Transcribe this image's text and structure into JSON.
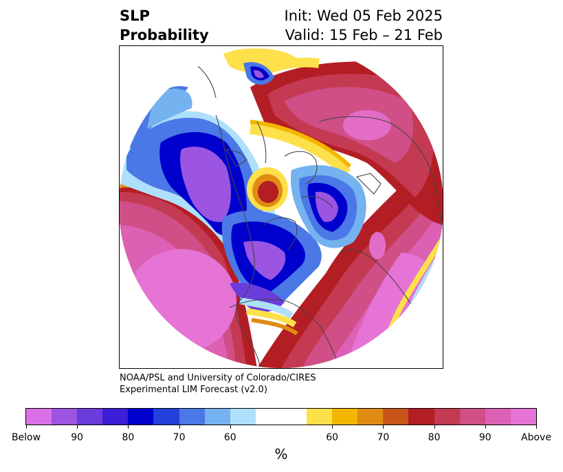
{
  "header": {
    "title_line1": "SLP",
    "title_line2": "Probability",
    "init": "Init: Wed 05 Feb 2025",
    "valid": "Valid: 15 Feb – 21 Feb"
  },
  "credit": {
    "line1": "NOAA/PSL and University of Colorado/CIRES",
    "line2": "Experimental LIM Forecast (v2.0)"
  },
  "colorbar": {
    "colors": [
      "#da70e6",
      "#9b55e0",
      "#6a3cdb",
      "#3b1ed6",
      "#0000cd",
      "#2340da",
      "#4a78e6",
      "#74b2f0",
      "#aee0fb",
      "#ffffff",
      "#ffffff",
      "#fde04a",
      "#f3b600",
      "#e08c12",
      "#c8561b",
      "#b31e24",
      "#c43a52",
      "#cf4f86",
      "#dc60b3",
      "#e673d6"
    ],
    "labels": [
      "Below",
      "90",
      "80",
      "70",
      "60",
      "60",
      "70",
      "80",
      "90",
      "Above"
    ],
    "unit": "%"
  },
  "map": {
    "projection": "north polar stereographic",
    "palette": {
      "above_strong": "#e673d6",
      "above_mid": "#cf4f86",
      "above_red": "#b31e24",
      "above_orange": "#e08c12",
      "above_yellow": "#fde04a",
      "below_light": "#aee0fb",
      "below_mid": "#4a78e6",
      "below_blue": "#0000cd",
      "below_strong": "#9b55e0",
      "land_outline": "#444444"
    }
  }
}
